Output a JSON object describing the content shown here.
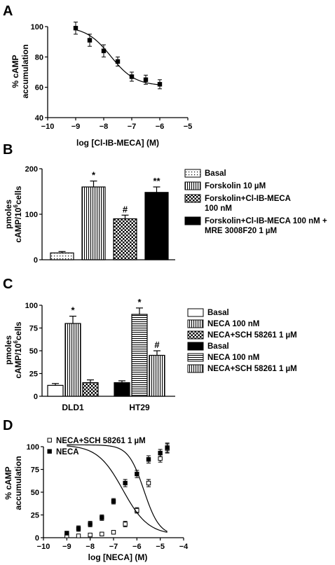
{
  "patterns": {
    "dots": "dots",
    "vstripes": "vertical-lines",
    "checker": "checkerboard",
    "hstripes": "horizontal-lines",
    "solid": "solid",
    "white": "none"
  },
  "chart_data": [
    {
      "id": "A",
      "type": "scatter",
      "panel_label": "A",
      "xlabel": "log [Cl-IB-MECA] (M)",
      "ylabel": [
        "% cAMP",
        "accumulation"
      ],
      "xlim": [
        -10,
        -5
      ],
      "ylim": [
        40,
        100
      ],
      "xticks": [
        -10,
        -9,
        -8,
        -7,
        -6,
        -5
      ],
      "yticks": [
        40,
        60,
        80,
        100
      ],
      "series": [
        {
          "marker": "filled-square",
          "x": [
            -9,
            -8.5,
            -8,
            -7.5,
            -7,
            -6.5,
            -6
          ],
          "y": [
            99,
            91,
            84,
            77,
            67,
            65,
            62
          ],
          "err": [
            4,
            4,
            4,
            3,
            3,
            3,
            3
          ],
          "fit": {
            "top": 100,
            "bottom": 61,
            "logEC50": -7.75,
            "hill": 1
          }
        }
      ]
    },
    {
      "id": "B",
      "type": "bar",
      "panel_label": "B",
      "ylabel": [
        "pmoles",
        "cAMP/10",
        "6",
        "cells"
      ],
      "ylim": [
        0,
        200
      ],
      "yticks": [
        0,
        100,
        200
      ],
      "bars": [
        {
          "value": 15,
          "err": 3,
          "pattern": "dots",
          "sig": ""
        },
        {
          "value": 160,
          "err": 13,
          "pattern": "vstripes",
          "sig": "*"
        },
        {
          "value": 90,
          "err": 8,
          "pattern": "checker",
          "sig": "#"
        },
        {
          "value": 148,
          "err": 12,
          "pattern": "solid",
          "sig": "**"
        }
      ],
      "legend": [
        {
          "lines": [
            "Basal"
          ],
          "pattern": "dots"
        },
        {
          "lines": [
            "Forskolin 10 µM"
          ],
          "pattern": "vstripes"
        },
        {
          "lines": [
            "Forskolin+Cl-IB-MECA",
            "100 nM"
          ],
          "pattern": "checker"
        },
        {
          "lines": [
            "Forskolin+Cl-IB-MECA 100 nM +",
            "MRE 3008F20 1 µM"
          ],
          "pattern": "solid"
        }
      ]
    },
    {
      "id": "C",
      "type": "bar",
      "panel_label": "C",
      "ylabel": [
        "pmoles",
        "cAMP/10",
        "6",
        "cells"
      ],
      "ylim": [
        0,
        100
      ],
      "yticks": [
        0,
        25,
        50,
        75,
        100
      ],
      "categories": [
        "DLD1",
        "HT29"
      ],
      "groups": [
        [
          {
            "value": 12,
            "err": 2,
            "pattern": "white",
            "sig": ""
          },
          {
            "value": 80,
            "err": 8,
            "pattern": "vstripes",
            "sig": "*"
          },
          {
            "value": 15,
            "err": 3,
            "pattern": "checker",
            "sig": ""
          }
        ],
        [
          {
            "value": 15,
            "err": 2,
            "pattern": "solid",
            "sig": ""
          },
          {
            "value": 90,
            "err": 7,
            "pattern": "hstripes",
            "sig": "*"
          },
          {
            "value": 45,
            "err": 5,
            "pattern": "vstripes",
            "sig": "#"
          }
        ]
      ],
      "legend": [
        {
          "lines": [
            "Basal"
          ],
          "pattern": "white"
        },
        {
          "lines": [
            "NECA 100 nM"
          ],
          "pattern": "vstripes"
        },
        {
          "lines": [
            "NECA+SCH 58261 1 µM"
          ],
          "pattern": "checker"
        },
        {
          "lines": [
            "Basal"
          ],
          "pattern": "solid"
        },
        {
          "lines": [
            "NECA 100 nM"
          ],
          "pattern": "hstripes"
        },
        {
          "lines": [
            "NECA+SCH 58261 1 µM"
          ],
          "pattern": "vstripes"
        }
      ]
    },
    {
      "id": "D",
      "type": "scatter",
      "panel_label": "D",
      "xlabel": "log [NECA] (M)",
      "ylabel": [
        "% cAMP",
        "accumulation"
      ],
      "xlim": [
        -10,
        -4
      ],
      "ylim": [
        0,
        100
      ],
      "xticks": [
        -10,
        -9,
        -8,
        -7,
        -6,
        -5,
        -4
      ],
      "yticks": [
        0,
        25,
        50,
        75,
        100
      ],
      "legend_position": "top-left",
      "series": [
        {
          "name": "NECA+SCH 58261 1 µM",
          "marker": "open-square",
          "x": [
            -9,
            -8.5,
            -8,
            -7.5,
            -7,
            -6.5,
            -6,
            -5.5,
            -5,
            -4.7
          ],
          "y": [
            2,
            2,
            3,
            4,
            6,
            15,
            30,
            60,
            87,
            98
          ],
          "err": [
            1,
            1,
            1,
            2,
            2,
            3,
            3,
            4,
            4,
            5
          ],
          "fit": {
            "top": 102,
            "bottom": 2,
            "logEC50": -5.7,
            "hill": 1.3
          }
        },
        {
          "name": "NECA",
          "marker": "filled-square",
          "x": [
            -9,
            -8.5,
            -8,
            -7.5,
            -7,
            -6.5,
            -6,
            -5.5,
            -5,
            -4.7
          ],
          "y": [
            5,
            10,
            15,
            22,
            40,
            60,
            70,
            86,
            93,
            99
          ],
          "err": [
            2,
            3,
            3,
            3,
            3,
            4,
            4,
            4,
            4,
            5
          ],
          "fit": {
            "top": 102,
            "bottom": 3,
            "logEC50": -6.6,
            "hill": 0.8
          }
        }
      ]
    }
  ]
}
